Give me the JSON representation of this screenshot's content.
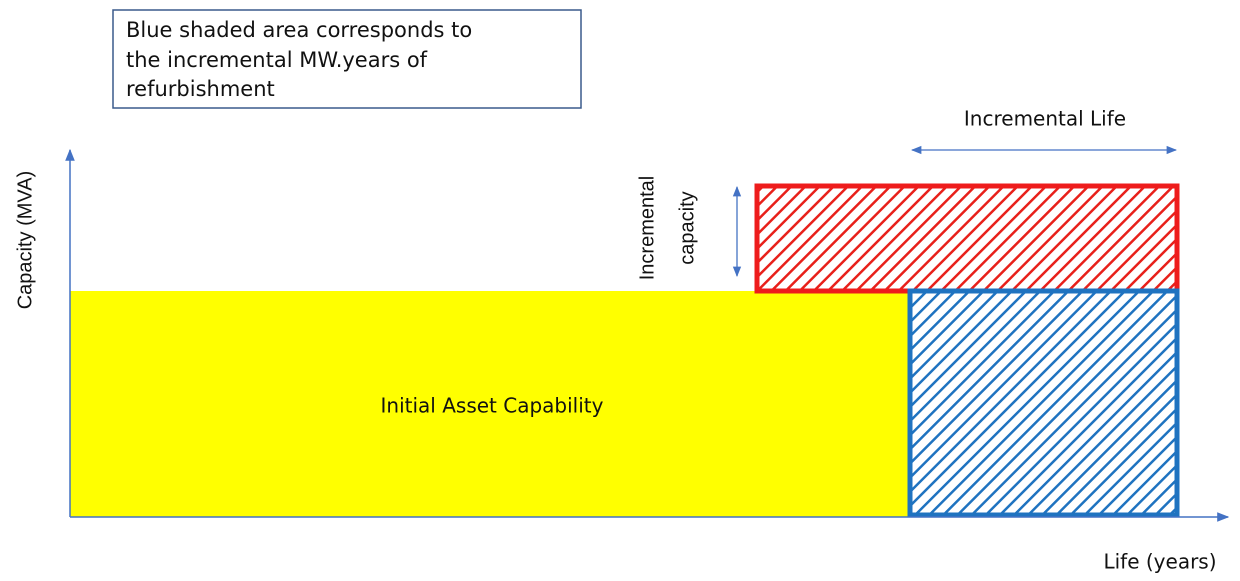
{
  "note": {
    "lines": [
      "Blue shaded area corresponds to",
      "the incremental MW.years of",
      "refurbishment"
    ]
  },
  "labels": {
    "incremental_life": "Incremental Life",
    "incremental_capacity": [
      "Incremental",
      "capacity"
    ],
    "y_axis": "Capacity (MVA)",
    "x_axis": "Life (years)",
    "initial": "Initial Asset Capability"
  }
}
